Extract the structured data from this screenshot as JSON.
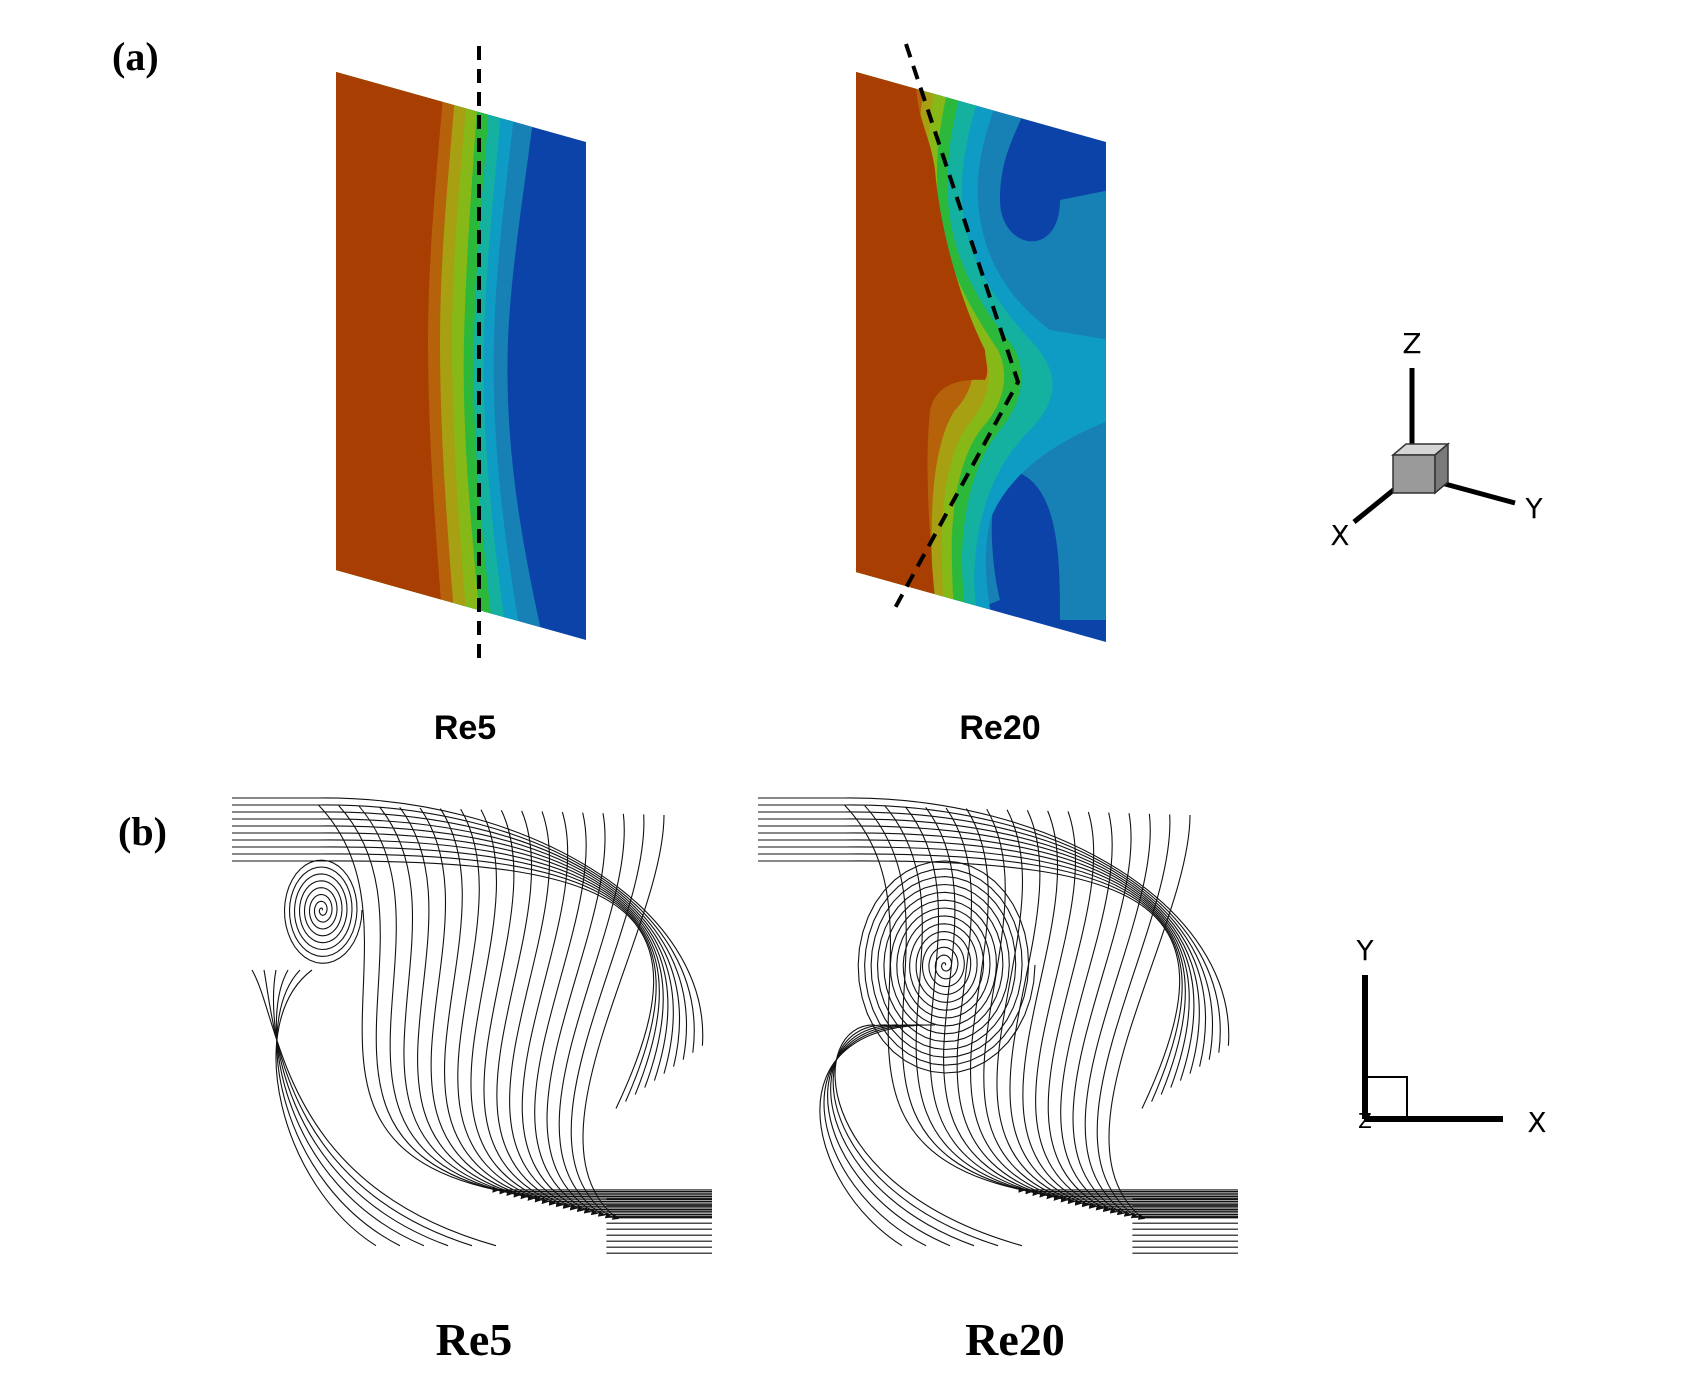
{
  "panels": {
    "a": {
      "label": "(a)",
      "captions": [
        "Re5",
        "Re20"
      ]
    },
    "b": {
      "label": "(b)",
      "captions": [
        "Re5",
        "Re20"
      ]
    }
  },
  "axes_3d": {
    "x": "X",
    "y": "Y",
    "z": "Z"
  },
  "axes_2d": {
    "x": "X",
    "y": "Y",
    "z": "Z"
  },
  "colors": {
    "hot": "#a83e02",
    "orange": "#b5620a",
    "olive": "#a6a012",
    "yellowgreen": "#86b818",
    "green": "#2cb83a",
    "teal": "#14b0a0",
    "cyan": "#0e9cc4",
    "steel": "#1780b4",
    "blue": "#0b43a8"
  }
}
